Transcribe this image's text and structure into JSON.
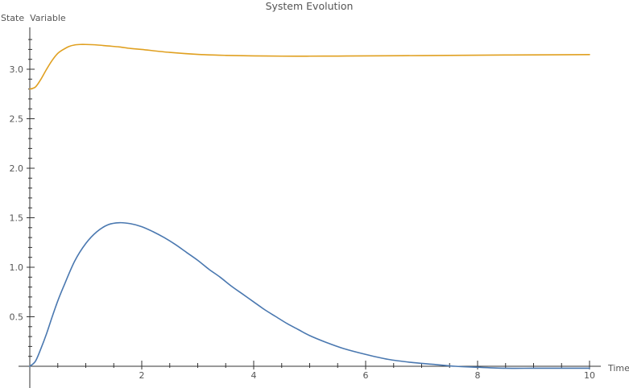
{
  "chart_data": {
    "type": "line",
    "title": "System Evolution",
    "xlabel": "Time",
    "ylabel": "State  Variable",
    "xlim": [
      0,
      10
    ],
    "ylim": [
      0,
      3.4
    ],
    "grid": false,
    "x_ticks": [
      2,
      4,
      6,
      8,
      10
    ],
    "x_tick_labels": [
      "2",
      "4",
      "6",
      "8",
      "10"
    ],
    "y_ticks": [
      0.5,
      1.0,
      1.5,
      2.0,
      2.5,
      3.0
    ],
    "y_tick_labels": [
      "0.5",
      "1.0",
      "1.5",
      "2.0",
      "2.5",
      "3.0"
    ],
    "series": [
      {
        "color": "#4a78b0",
        "x": [
          0,
          0.1,
          0.2,
          0.3,
          0.4,
          0.5,
          0.6,
          0.8,
          1.0,
          1.2,
          1.4,
          1.6,
          1.8,
          2.0,
          2.2,
          2.4,
          2.6,
          2.8,
          3.0,
          3.2,
          3.4,
          3.6,
          3.8,
          4.0,
          4.2,
          4.4,
          4.6,
          4.8,
          5.0,
          5.3,
          5.6,
          6.0,
          6.4,
          6.8,
          7.2,
          7.6,
          8.0,
          8.5,
          9.0,
          9.5,
          10.0
        ],
        "y": [
          0,
          0.05,
          0.18,
          0.33,
          0.5,
          0.66,
          0.8,
          1.06,
          1.24,
          1.36,
          1.43,
          1.45,
          1.44,
          1.41,
          1.36,
          1.3,
          1.23,
          1.15,
          1.07,
          0.98,
          0.9,
          0.81,
          0.73,
          0.65,
          0.57,
          0.5,
          0.43,
          0.37,
          0.31,
          0.24,
          0.18,
          0.12,
          0.07,
          0.04,
          0.02,
          0.0,
          -0.01,
          -0.02,
          -0.02,
          -0.02,
          -0.02
        ]
      },
      {
        "color": "#e0a020",
        "x": [
          0,
          0.1,
          0.2,
          0.3,
          0.4,
          0.5,
          0.6,
          0.7,
          0.8,
          0.9,
          1.0,
          1.2,
          1.4,
          1.6,
          1.8,
          2.0,
          2.5,
          3.0,
          3.5,
          4.0,
          4.5,
          5.0,
          5.5,
          6.0,
          7.0,
          8.0,
          9.0,
          10.0
        ],
        "y": [
          2.8,
          2.82,
          2.9,
          3.0,
          3.09,
          3.16,
          3.2,
          3.23,
          3.245,
          3.25,
          3.25,
          3.245,
          3.235,
          3.225,
          3.21,
          3.2,
          3.17,
          3.15,
          3.14,
          3.135,
          3.132,
          3.132,
          3.133,
          3.135,
          3.138,
          3.142,
          3.145,
          3.148
        ]
      }
    ]
  }
}
